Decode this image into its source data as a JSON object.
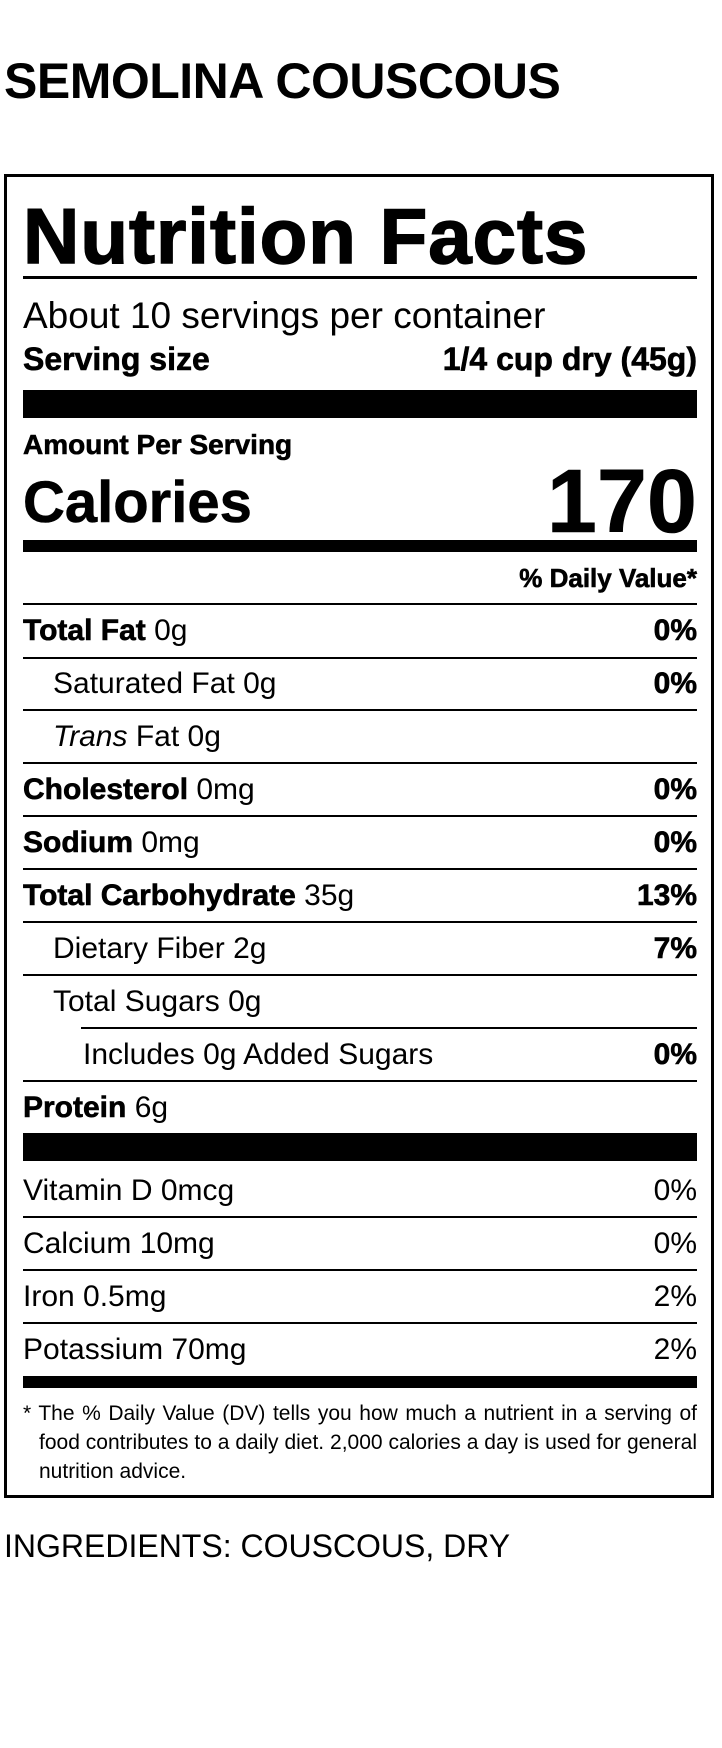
{
  "product_name": "SEMOLINA COUSCOUS",
  "label": {
    "heading": "Nutrition Facts",
    "servings_per_container": "About 10 servings per container",
    "serving_size_label": "Serving size",
    "serving_size_value": "1/4 cup dry (45g)",
    "amount_per_serving": "Amount Per Serving",
    "calories_label": "Calories",
    "calories_value": "170",
    "dv_header": "% Daily Value*",
    "nutrients": [
      {
        "name": "Total Fat",
        "amount": "0g",
        "dv": "0%"
      },
      {
        "name": "Saturated Fat",
        "amount": "0g",
        "dv": "0%"
      },
      {
        "name": "Trans",
        "name_rest": "Fat",
        "amount": "0g",
        "dv": ""
      },
      {
        "name": "Cholesterol",
        "amount": "0mg",
        "dv": "0%"
      },
      {
        "name": "Sodium",
        "amount": "0mg",
        "dv": "0%"
      },
      {
        "name": "Total Carbohydrate",
        "amount": "35g",
        "dv": "13%"
      },
      {
        "name": "Dietary Fiber",
        "amount": "2g",
        "dv": "7%"
      },
      {
        "name": "Total Sugars",
        "amount": "0g",
        "dv": ""
      },
      {
        "name": "Includes 0g Added Sugars",
        "amount": "",
        "dv": "0%"
      },
      {
        "name": "Protein",
        "amount": "6g",
        "dv": ""
      }
    ],
    "vitamins": [
      {
        "text": "Vitamin D 0mcg",
        "dv": "0%"
      },
      {
        "text": "Calcium 10mg",
        "dv": "0%"
      },
      {
        "text": "Iron 0.5mg",
        "dv": "2%"
      },
      {
        "text": "Potassium 70mg",
        "dv": "2%"
      }
    ],
    "footnote": "* The % Daily Value (DV) tells you how much a nutrient in a serving of food contributes to a daily diet. 2,000 calories a day is used for general nutrition advice."
  },
  "ingredients": "INGREDIENTS: COUSCOUS, DRY"
}
